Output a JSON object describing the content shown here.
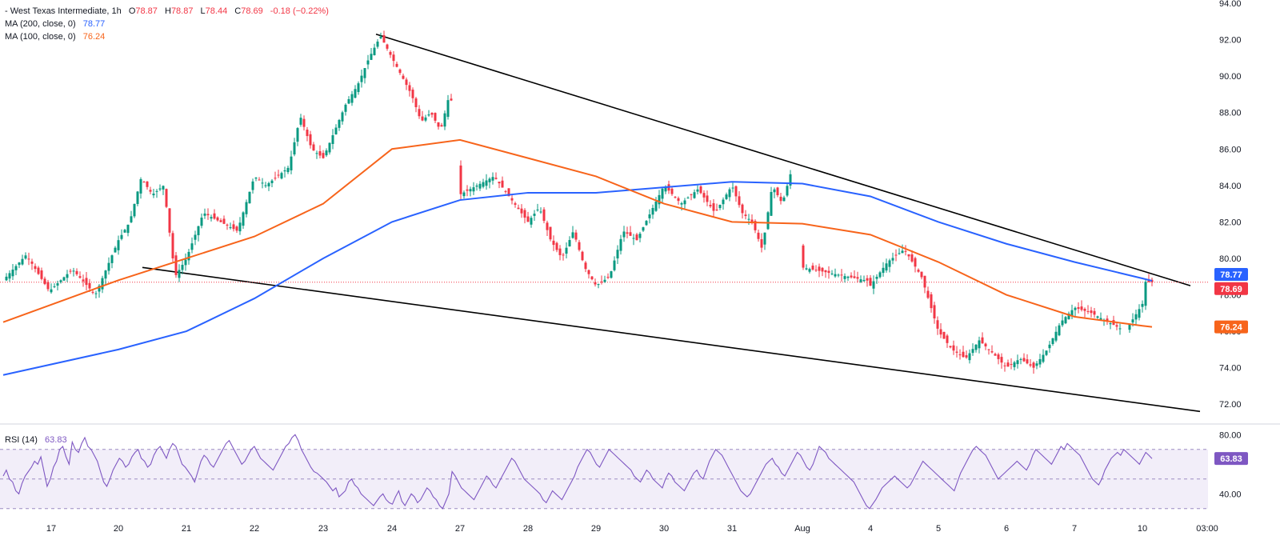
{
  "header": {
    "collapse_glyph": "-",
    "symbol": "West Texas Intermediate",
    "interval": "1h",
    "open_label": "O",
    "open": "78.87",
    "high_label": "H",
    "high": "78.87",
    "low_label": "L",
    "low": "78.44",
    "close_label": "C",
    "close": "78.69",
    "change": "-0.18",
    "change_pct": "(−0.22%)",
    "ma200_label": "MA (200, close, 0)",
    "ma200_value": "78.77",
    "ma100_label": "MA (100, close, 0)",
    "ma100_value": "76.24",
    "rsi_label": "RSI (14)",
    "rsi_value": "63.83"
  },
  "colors": {
    "up": "#089981",
    "down": "#f23645",
    "ma200": "#2962ff",
    "ma100": "#f7641b",
    "rsi": "#7e57c2",
    "rsi_band": "#ede7f6",
    "trendline": "#000000",
    "last_price": "#f23645"
  },
  "chart_data": [
    {
      "type": "candlestick",
      "title": "West Texas Intermediate, 1h",
      "ylim": [
        71,
        94
      ],
      "y_ticks": [
        "72.00",
        "74.00",
        "76.00",
        "78.00",
        "80.00",
        "82.00",
        "84.00",
        "86.00",
        "88.00",
        "90.00",
        "92.00",
        "94.00"
      ],
      "x_ticks": [
        "17",
        "20",
        "21",
        "22",
        "23",
        "24",
        "27",
        "28",
        "29",
        "30",
        "31",
        "Aug",
        "4",
        "5",
        "6",
        "7",
        "10",
        "03:00"
      ],
      "last_price": 78.69,
      "price_labels": [
        {
          "name": "MA (200, close, 0)",
          "value": 78.77,
          "label": "78.77"
        },
        {
          "name": "last",
          "value": 78.69,
          "label": "78.69"
        },
        {
          "name": "MA (100, close, 0)",
          "value": 76.24,
          "label": "76.24"
        }
      ],
      "price_path": [
        [
          "17",
          78.8
        ],
        [
          "17",
          80.2
        ],
        [
          "17",
          78.2
        ],
        [
          "17",
          79.4
        ],
        [
          "17",
          78.0
        ],
        [
          "20",
          81.0
        ],
        [
          "20",
          82.0
        ],
        [
          "20",
          84.4
        ],
        [
          "20",
          83.5
        ],
        [
          "20",
          84.0
        ],
        [
          "20",
          79.0
        ],
        [
          "21",
          80.0
        ],
        [
          "21",
          82.5
        ],
        [
          "21",
          82.0
        ],
        [
          "21",
          81.5
        ],
        [
          "22",
          84.5
        ],
        [
          "22",
          84.0
        ],
        [
          "22",
          84.5
        ],
        [
          "22",
          85.0
        ],
        [
          "22",
          87.8
        ],
        [
          "22",
          86.0
        ],
        [
          "23",
          85.5
        ],
        [
          "23",
          87.0
        ],
        [
          "23",
          88.5
        ],
        [
          "23",
          89.5
        ],
        [
          "23",
          91.0
        ],
        [
          "23",
          92.2
        ],
        [
          "24",
          91.0
        ],
        [
          "24",
          90.0
        ],
        [
          "24",
          89.0
        ],
        [
          "24",
          87.5
        ],
        [
          "24",
          88.0
        ],
        [
          "24",
          87.0
        ],
        [
          "24",
          89.2
        ],
        [
          "27",
          83.5
        ],
        [
          "27",
          84.5
        ],
        [
          "28",
          82.0
        ],
        [
          "28",
          82.8
        ],
        [
          "28",
          81.0
        ],
        [
          "28",
          80.0
        ],
        [
          "28",
          81.5
        ],
        [
          "28",
          79.5
        ],
        [
          "29",
          78.5
        ],
        [
          "29",
          79.0
        ],
        [
          "29",
          81.5
        ],
        [
          "29",
          81.0
        ],
        [
          "29",
          82.5
        ],
        [
          "30",
          84.0
        ],
        [
          "30",
          83.0
        ],
        [
          "30",
          83.8
        ],
        [
          "30",
          82.5
        ],
        [
          "31",
          84.0
        ],
        [
          "31",
          82.5
        ],
        [
          "31",
          82.0
        ],
        [
          "31",
          80.5
        ],
        [
          "31",
          84.0
        ],
        [
          "31",
          83.0
        ],
        [
          "31",
          85.0
        ],
        [
          "Aug",
          79.5
        ],
        [
          "Aug",
          78.0
        ],
        [
          "Aug",
          79.0
        ],
        [
          "4",
          78.5
        ],
        [
          "4",
          79.8
        ],
        [
          "4",
          80.5
        ],
        [
          "4",
          79.0
        ],
        [
          "5",
          76.0
        ],
        [
          "5",
          75.0
        ],
        [
          "5",
          74.5
        ],
        [
          "5",
          75.5
        ],
        [
          "5",
          74.8
        ],
        [
          "6",
          74.0
        ],
        [
          "6",
          74.5
        ],
        [
          "6",
          74.0
        ],
        [
          "6",
          75.0
        ],
        [
          "6",
          76.5
        ],
        [
          "7",
          77.3
        ],
        [
          "7",
          77.0
        ],
        [
          "7",
          76.5
        ],
        [
          "7",
          76.0
        ],
        [
          "10",
          77.5
        ],
        [
          "10",
          76.5
        ],
        [
          "10",
          78.0
        ],
        [
          "10",
          77.5
        ],
        [
          "10",
          78.7
        ]
      ],
      "series": [
        {
          "name": "MA (200, close, 0)",
          "points": [
            [
              "17",
              73.6
            ],
            [
              "20",
              75.0
            ],
            [
              "21",
              76.0
            ],
            [
              "22",
              77.8
            ],
            [
              "23",
              80.0
            ],
            [
              "24",
              82.0
            ],
            [
              "27",
              83.2
            ],
            [
              "28",
              83.6
            ],
            [
              "29",
              83.6
            ],
            [
              "30",
              83.9
            ],
            [
              "31",
              84.2
            ],
            [
              "Aug",
              84.1
            ],
            [
              "4",
              83.4
            ],
            [
              "5",
              82.0
            ],
            [
              "6",
              80.8
            ],
            [
              "7",
              79.8
            ],
            [
              "10",
              78.9
            ],
            [
              "03:00",
              78.77
            ]
          ]
        },
        {
          "name": "MA (100, close, 0)",
          "points": [
            [
              "17",
              76.5
            ],
            [
              "20",
              78.8
            ],
            [
              "21",
              80.0
            ],
            [
              "22",
              81.2
            ],
            [
              "23",
              83.0
            ],
            [
              "24",
              86.0
            ],
            [
              "27",
              86.5
            ],
            [
              "28",
              85.5
            ],
            [
              "29",
              84.5
            ],
            [
              "30",
              83.0
            ],
            [
              "31",
              82.0
            ],
            [
              "Aug",
              81.9
            ],
            [
              "4",
              81.3
            ],
            [
              "5",
              79.8
            ],
            [
              "6",
              78.0
            ],
            [
              "7",
              76.8
            ],
            [
              "10",
              76.3
            ],
            [
              "03:00",
              76.24
            ]
          ]
        }
      ],
      "trendlines": [
        {
          "name": "upper",
          "points": [
            [
              "24",
              92.3
            ],
            [
              "03:00",
              78.5
            ]
          ]
        },
        {
          "name": "lower",
          "points": [
            [
              "21",
              79.5
            ],
            [
              "03:00",
              71.6
            ]
          ]
        }
      ]
    },
    {
      "type": "line",
      "title": "RSI (14)",
      "ylim": [
        25,
        85
      ],
      "y_ticks": [
        "40.00",
        "80.00"
      ],
      "bands": [
        30,
        50,
        70
      ],
      "last_value": 63.83,
      "value_label": "63.83",
      "values": [
        52,
        56,
        50,
        48,
        42,
        40,
        47,
        52,
        55,
        58,
        62,
        60,
        65,
        55,
        45,
        50,
        58,
        62,
        70,
        72,
        65,
        60,
        75,
        70,
        68,
        74,
        78,
        72,
        70,
        66,
        62,
        55,
        48,
        45,
        50,
        56,
        60,
        64,
        62,
        58,
        60,
        65,
        68,
        70,
        64,
        62,
        58,
        60,
        66,
        70,
        72,
        68,
        64,
        70,
        74,
        72,
        66,
        60,
        58,
        55,
        52,
        48,
        55,
        62,
        66,
        64,
        60,
        58,
        62,
        66,
        70,
        74,
        76,
        72,
        68,
        64,
        60,
        62,
        66,
        70,
        72,
        68,
        64,
        62,
        60,
        58,
        56,
        60,
        64,
        68,
        72,
        74,
        78,
        80,
        76,
        70,
        66,
        62,
        58,
        55,
        54,
        52,
        50,
        48,
        45,
        42,
        44,
        38,
        40,
        42,
        48,
        50,
        46,
        44,
        40,
        38,
        36,
        34,
        32,
        35,
        38,
        40,
        36,
        34,
        33,
        38,
        42,
        35,
        32,
        36,
        40,
        38,
        34,
        36,
        40,
        44,
        42,
        38,
        36,
        32,
        30,
        35,
        40,
        55,
        52,
        48,
        44,
        42,
        40,
        38,
        36,
        40,
        44,
        48,
        52,
        50,
        46,
        44,
        48,
        52,
        56,
        60,
        64,
        62,
        58,
        54,
        50,
        48,
        46,
        44,
        42,
        40,
        36,
        34,
        38,
        42,
        40,
        38,
        36,
        40,
        44,
        48,
        52,
        58,
        62,
        66,
        70,
        68,
        64,
        60,
        58,
        62,
        66,
        70,
        68,
        66,
        64,
        62,
        60,
        58,
        56,
        52,
        50,
        48,
        52,
        56,
        54,
        50,
        48,
        46,
        44,
        50,
        54,
        52,
        48,
        46,
        44,
        42,
        46,
        50,
        54,
        56,
        52,
        50,
        56,
        62,
        66,
        70,
        68,
        66,
        62,
        58,
        54,
        50,
        46,
        42,
        40,
        38,
        40,
        44,
        48,
        52,
        56,
        60,
        62,
        64,
        60,
        58,
        54,
        52,
        56,
        60,
        64,
        68,
        66,
        62,
        58,
        56,
        60,
        66,
        72,
        70,
        68,
        64,
        62,
        60,
        58,
        56,
        54,
        52,
        50,
        48,
        44,
        40,
        36,
        32,
        30,
        33,
        36,
        40,
        44,
        46,
        48,
        50,
        52,
        50,
        48,
        46,
        44,
        46,
        50,
        54,
        58,
        62,
        60,
        58,
        56,
        54,
        52,
        50,
        48,
        46,
        44,
        42,
        48,
        54,
        58,
        62,
        66,
        70,
        72,
        70,
        68,
        66,
        62,
        58,
        54,
        50,
        52,
        54,
        56,
        58,
        60,
        62,
        60,
        58,
        56,
        60,
        66,
        70,
        68,
        66,
        64,
        62,
        60,
        64,
        68,
        72,
        70,
        74,
        72,
        70,
        68,
        66,
        62,
        58,
        54,
        50,
        48,
        46,
        50,
        56,
        60,
        64,
        66,
        68,
        66,
        70,
        68,
        66,
        64,
        62,
        60,
        64,
        68,
        66,
        63.83
      ]
    }
  ]
}
